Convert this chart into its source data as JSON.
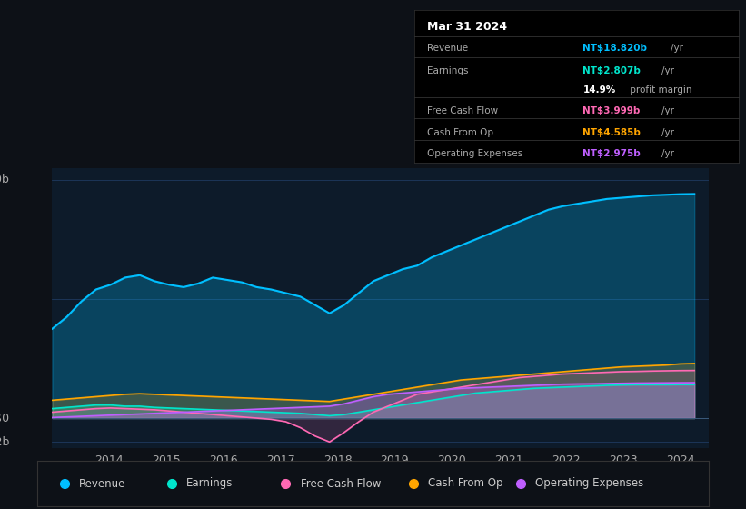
{
  "bg_color": "#0d1117",
  "plot_bg_color": "#0d1b2a",
  "grid_color": "#1e3a5f",
  "xtick_labels": [
    "2014",
    "2015",
    "2016",
    "2017",
    "2018",
    "2019",
    "2020",
    "2021",
    "2022",
    "2023",
    "2024"
  ],
  "tooltip_title": "Mar 31 2024",
  "tooltip_rows": [
    {
      "label": "Revenue",
      "value": "NT$18.820b",
      "unit": "/yr",
      "color": "#00bfff"
    },
    {
      "label": "Earnings",
      "value": "NT$2.807b",
      "unit": "/yr",
      "color": "#00e5cc"
    },
    {
      "label": "",
      "value": "14.9%",
      "unit": " profit margin",
      "color": "#ffffff"
    },
    {
      "label": "Free Cash Flow",
      "value": "NT$3.999b",
      "unit": "/yr",
      "color": "#ff69b4"
    },
    {
      "label": "Cash From Op",
      "value": "NT$4.585b",
      "unit": "/yr",
      "color": "#ffa500"
    },
    {
      "label": "Operating Expenses",
      "value": "NT$2.975b",
      "unit": "/yr",
      "color": "#bf5fff"
    }
  ],
  "legend_items": [
    {
      "label": "Revenue",
      "color": "#00bfff"
    },
    {
      "label": "Earnings",
      "color": "#00e5cc"
    },
    {
      "label": "Free Cash Flow",
      "color": "#ff69b4"
    },
    {
      "label": "Cash From Op",
      "color": "#ffa500"
    },
    {
      "label": "Operating Expenses",
      "color": "#bf5fff"
    }
  ],
  "colors": {
    "revenue": "#00bfff",
    "earnings": "#00e5cc",
    "fcf": "#ff69b4",
    "cashfromop": "#ffa500",
    "opex": "#bf5fff"
  }
}
